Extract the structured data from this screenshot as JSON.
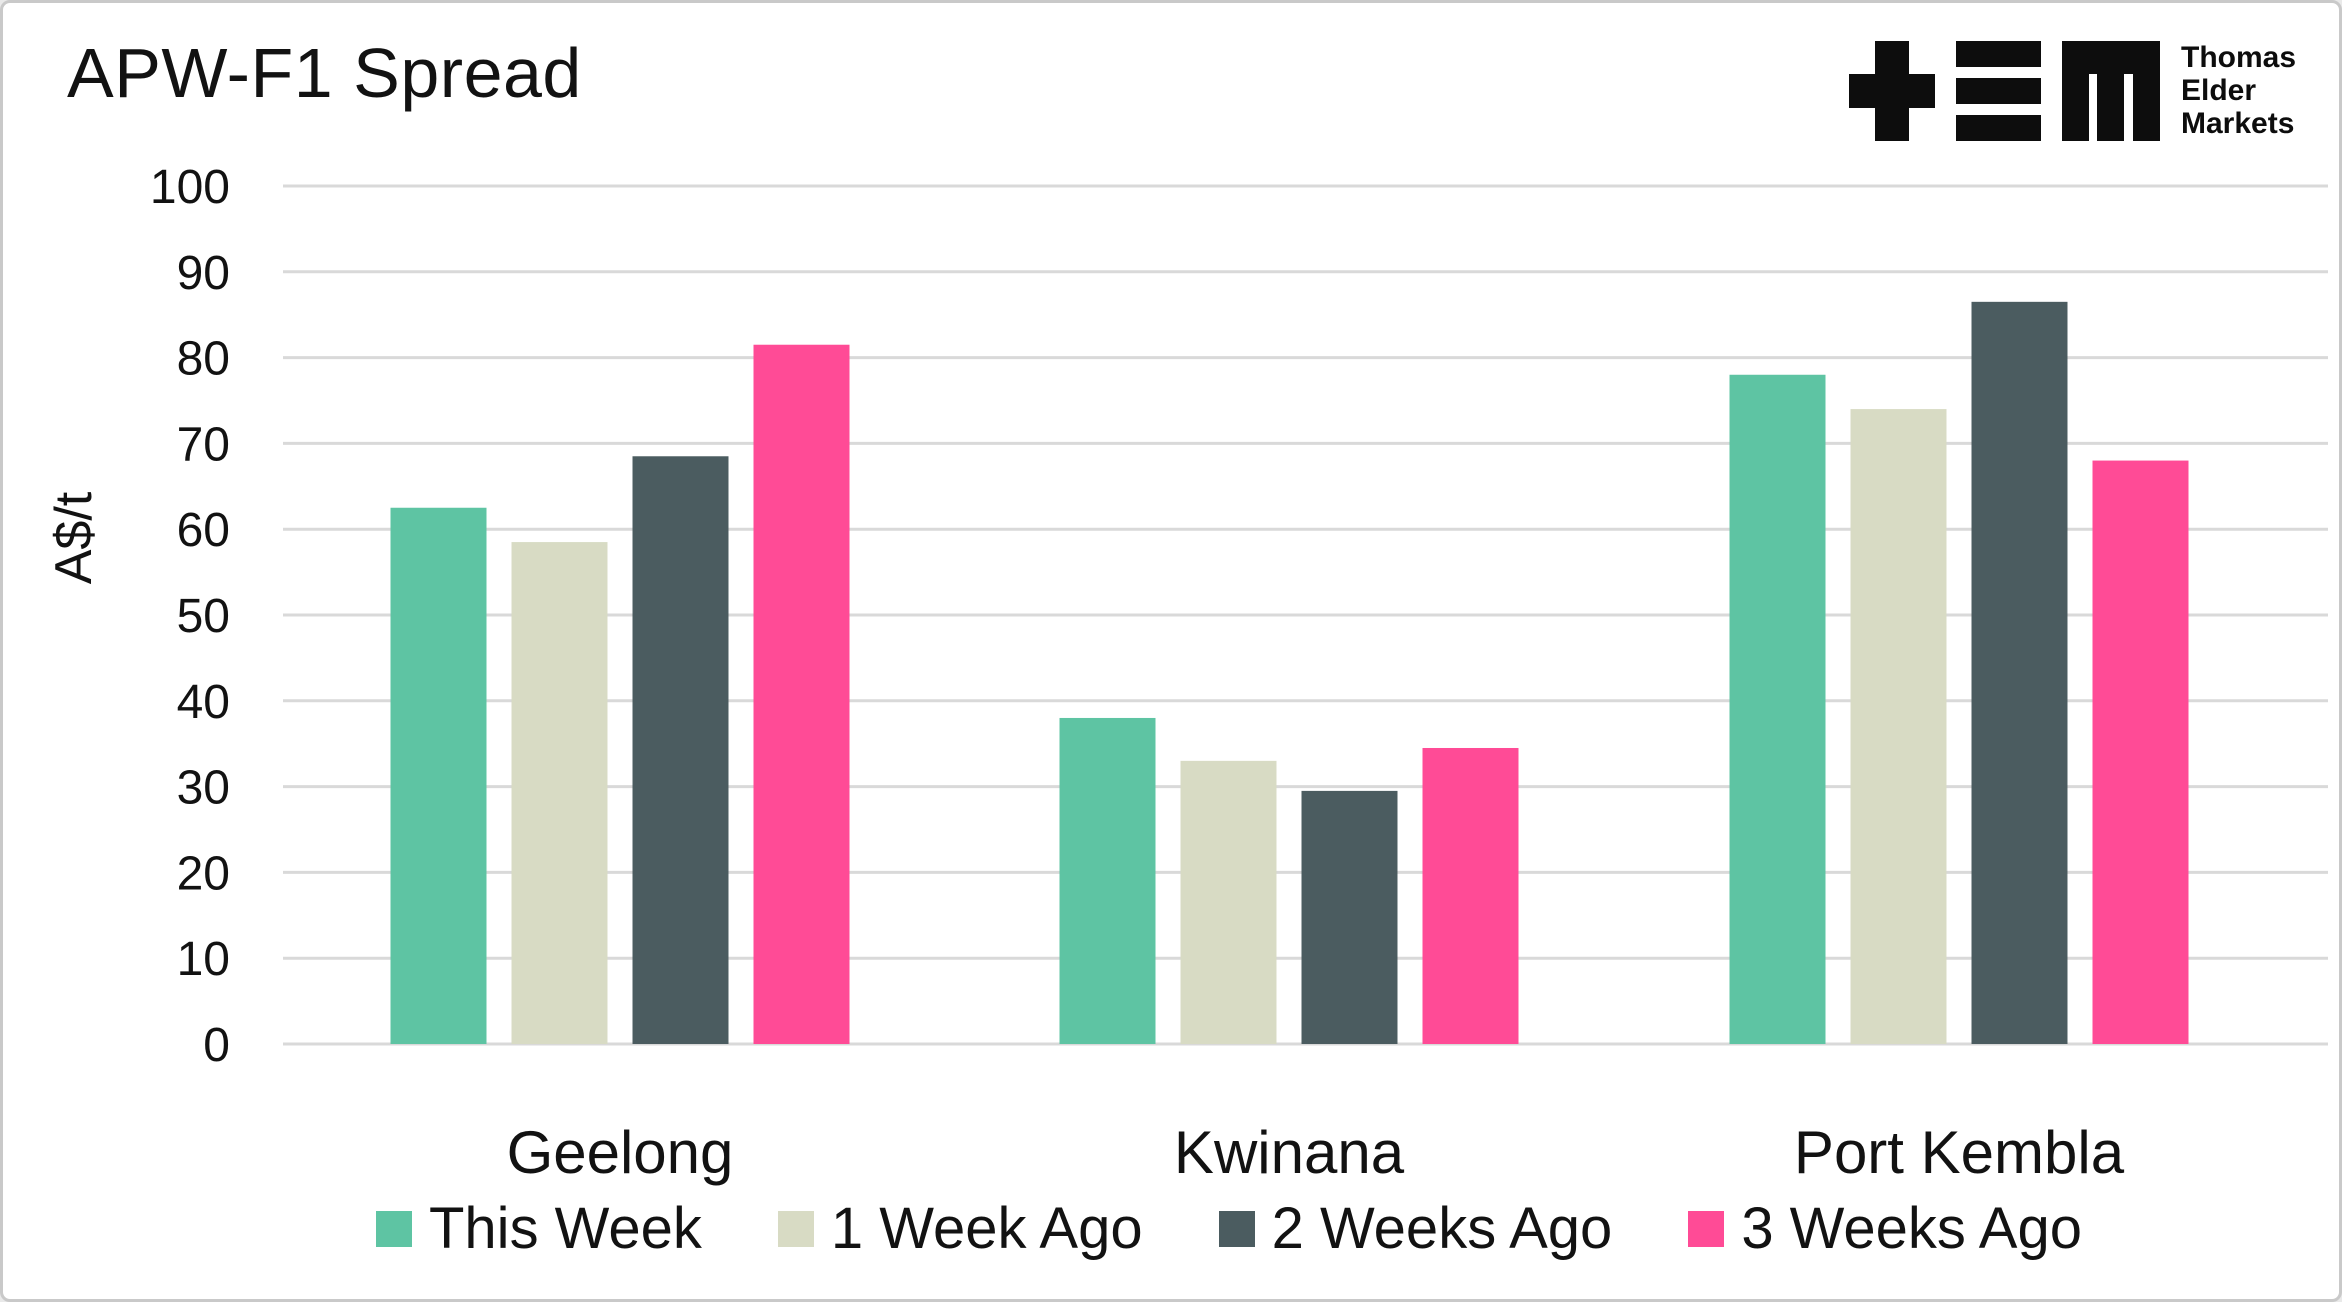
{
  "chart_data": {
    "type": "bar",
    "title": "APW-F1 Spread",
    "xlabel": "",
    "ylabel": "A$/t",
    "ylim": [
      0,
      100
    ],
    "yticks": [
      0,
      10,
      20,
      30,
      40,
      50,
      60,
      70,
      80,
      90,
      100
    ],
    "grid": true,
    "legend_position": "bottom",
    "categories": [
      "Geelong",
      "Kwinana",
      "Port Kembla"
    ],
    "series": [
      {
        "name": "This Week",
        "color": "#5EC4A3",
        "values": [
          62.5,
          38.0,
          78.0
        ]
      },
      {
        "name": "1 Week Ago",
        "color": "#D8DBC4",
        "values": [
          58.5,
          33.0,
          74.0
        ]
      },
      {
        "name": "2 Weeks Ago",
        "color": "#4B5C60",
        "values": [
          68.5,
          29.5,
          86.5
        ]
      },
      {
        "name": "3 Weeks Ago",
        "color": "#FF4B96",
        "values": [
          81.5,
          34.5,
          68.0
        ]
      }
    ]
  },
  "logo": {
    "name": "Thomas Elder Markets",
    "lines": [
      "Thomas",
      "Elder",
      "Markets"
    ]
  },
  "colors": {
    "grid": "#d9d9d9",
    "text": "#121212",
    "background": "#ffffff",
    "frame_border": "#c9c9c9"
  }
}
